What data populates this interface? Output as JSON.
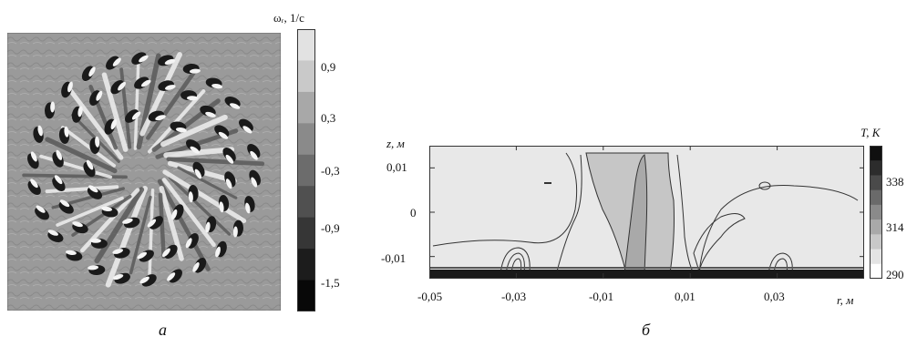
{
  "panel_a": {
    "caption": "а",
    "colorbar": {
      "title": "ωᵣ, 1/с",
      "tick_labels": [
        "0,9",
        "0,3",
        "-0,3",
        "-0,9",
        "-1,5"
      ],
      "band_colors": [
        "#e2e2e2",
        "#c9c9c9",
        "#a8a8a8",
        "#8a8a8a",
        "#6c6c6c",
        "#505050",
        "#363636",
        "#1c1c1c",
        "#080808"
      ]
    },
    "background_color": "#9a9a9a"
  },
  "panel_b": {
    "caption": "б",
    "x_title": "r, м",
    "y_title": "z, м",
    "x_tick_labels": [
      "-0,05",
      "-0,03",
      "-0,01",
      "0,01",
      "0,03"
    ],
    "y_tick_labels": [
      "0,01",
      "0",
      "-0,01"
    ],
    "colorbar": {
      "title": "T, K",
      "tick_labels": [
        "338",
        "314",
        "290"
      ],
      "band_colors": [
        "#101010",
        "#2c2c2c",
        "#4a4a4a",
        "#6a6a6a",
        "#8a8a8a",
        "#a9a9a9",
        "#c8c8c8",
        "#e4e4e4",
        "#ffffff"
      ]
    }
  },
  "chart_data": [
    {
      "type": "heatmap",
      "title": "",
      "xlabel": "",
      "ylabel": "",
      "colorbar_label": "ωᵣ, 1/с",
      "colorbar_ticks": [
        0.9,
        0.3,
        -0.3,
        -0.9,
        -1.5
      ]
    },
    {
      "type": "heatmap",
      "title": "",
      "xlabel": "r, м",
      "ylabel": "z, м",
      "x_ticks": [
        -0.05,
        -0.03,
        -0.01,
        0.01,
        0.03
      ],
      "y_ticks": [
        0.01,
        0,
        -0.01
      ],
      "xlim": [
        -0.05,
        0.05
      ],
      "ylim": [
        -0.015,
        0.015
      ],
      "colorbar_label": "T, K",
      "colorbar_ticks": [
        338,
        314,
        290
      ]
    }
  ]
}
